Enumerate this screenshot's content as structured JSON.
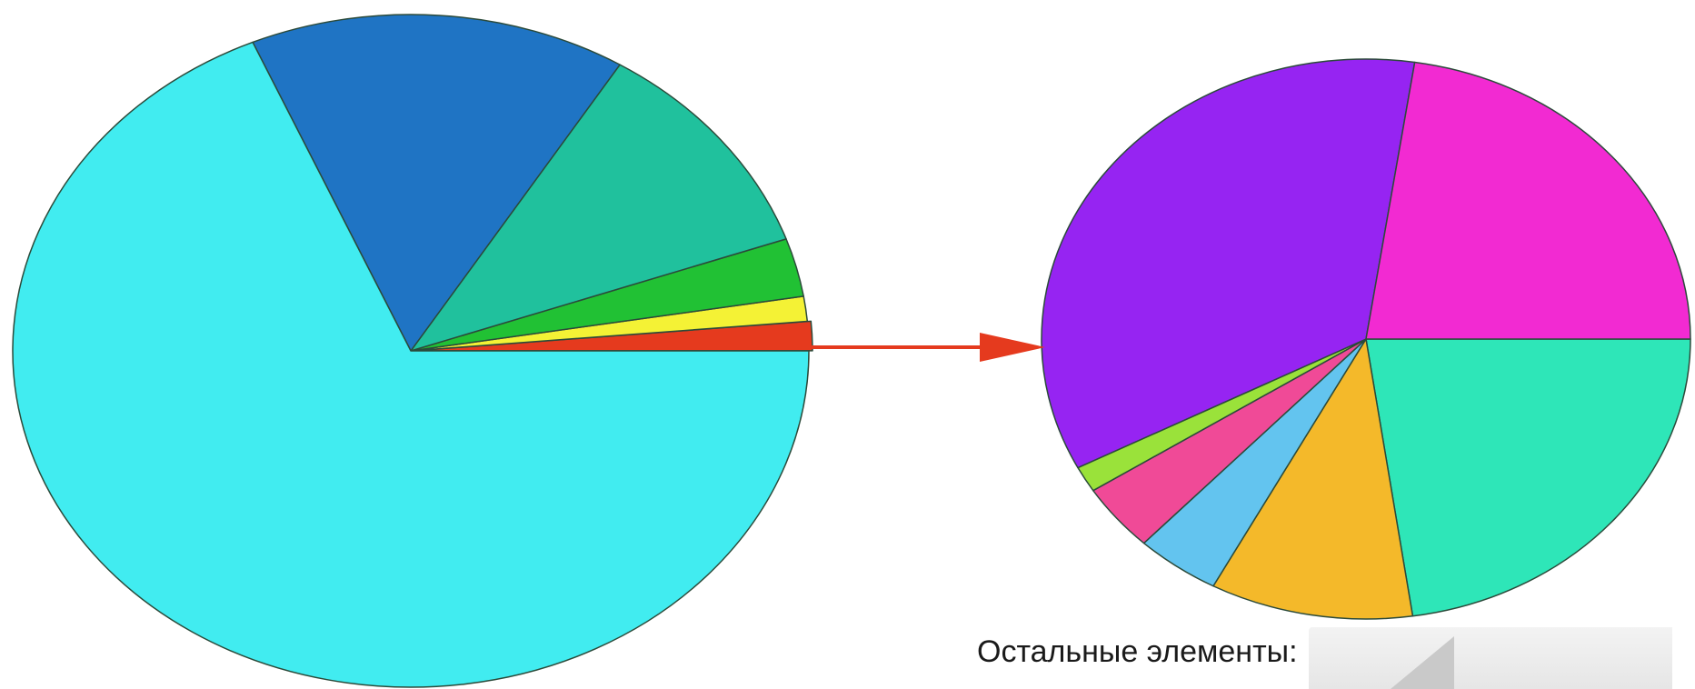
{
  "chart_data": [
    {
      "type": "pie",
      "start_angle_deg": 0,
      "direction": "counterclockwise",
      "values": [
        1.4,
        1.2,
        2.8,
        10.8,
        15.3,
        68.5
      ],
      "colors": [
        "#e53a1e",
        "#f4f235",
        "#21c134",
        "#20c19d",
        "#1f74c4",
        "#41ecf0"
      ],
      "exploded_index": 0
    },
    {
      "type": "pie",
      "start_angle_deg": 0,
      "direction": "clockwise",
      "values": [
        22.7,
        10.1,
        4.2,
        3.9,
        1.5,
        35.0,
        22.6
      ],
      "colors": [
        "#2ee6b8",
        "#f4b92a",
        "#63c4ef",
        "#f04a97",
        "#9ae23a",
        "#9624f2",
        "#f22ad2"
      ]
    }
  ],
  "caption": "Остальные элементы:"
}
